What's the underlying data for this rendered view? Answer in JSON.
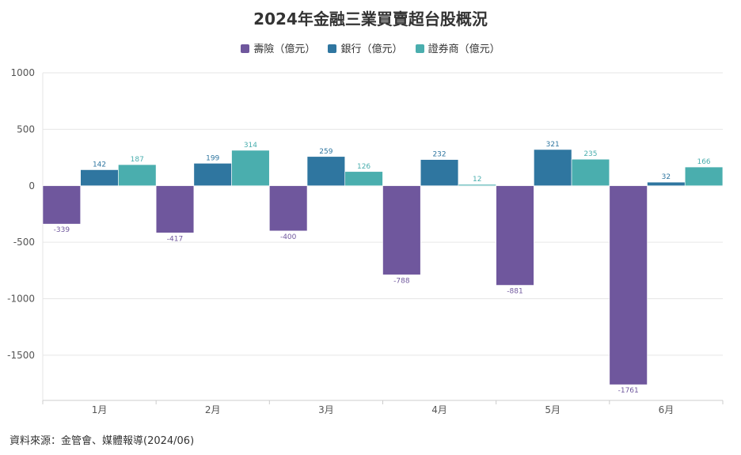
{
  "chart_data": {
    "type": "bar",
    "title": "2024年金融三業買賣超台股概況",
    "categories": [
      "1月",
      "2月",
      "3月",
      "4月",
      "5月",
      "6月"
    ],
    "series": [
      {
        "name": "壽險（億元）",
        "color": "#6f579d",
        "values": [
          -339,
          -417,
          -400,
          -788,
          -881,
          -1761
        ]
      },
      {
        "name": "銀行（億元）",
        "color": "#2f76a0",
        "values": [
          142,
          199,
          259,
          232,
          321,
          32
        ]
      },
      {
        "name": "證券商（億元）",
        "color": "#4aaeae",
        "values": [
          187,
          314,
          126,
          12,
          235,
          166
        ]
      }
    ],
    "ylim": [
      -1900,
      1000
    ],
    "yticks": [
      1000,
      500,
      0,
      -500,
      -1000,
      -1500
    ],
    "xlabel": "",
    "ylabel": "",
    "legend_position": "top-center",
    "grid": true
  },
  "source_note": "資料來源：金管會、媒體報導(2024/06)"
}
